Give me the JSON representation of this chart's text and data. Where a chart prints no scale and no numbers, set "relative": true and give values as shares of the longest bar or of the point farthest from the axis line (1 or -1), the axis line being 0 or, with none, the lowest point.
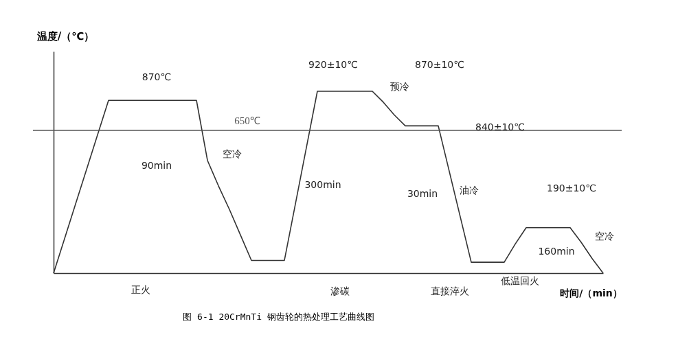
{
  "chart_data": {
    "type": "line",
    "relative": true,
    "title": "图 6-1 20CrMnTi 钢齿轮的热处理工艺曲线图",
    "xlabel": "时间/（min）",
    "ylabel": "温度/（℃）",
    "categories": [
      null,
      null,
      null,
      null,
      null,
      null,
      null,
      null,
      null,
      null,
      null,
      null,
      null,
      null,
      null,
      null,
      null,
      null,
      null,
      null,
      null,
      null,
      null,
      null,
      null,
      null,
      null,
      null,
      null,
      null,
      null,
      null,
      null,
      null,
      null,
      null,
      null,
      null,
      null,
      null,
      null,
      null,
      null,
      null,
      null,
      null,
      null,
      null,
      null,
      null,
      null
    ],
    "series": [
      {
        "color": "#333333",
        "values": [
          0,
          0.19,
          0.38,
          0.57,
          0.76,
          0.95,
          0.95,
          0.95,
          0.95,
          0.95,
          0.95,
          0.95,
          0.95,
          0.95,
          0.62,
          0.48,
          0.35,
          0.21,
          0.07,
          0.07,
          0.07,
          0.07,
          0.38,
          0.69,
          1,
          1,
          1,
          1,
          1,
          1,
          0.94,
          0.87,
          0.81,
          0.81,
          0.81,
          0.81,
          0.56,
          0.31,
          0.06,
          0.06,
          0.06,
          0.06,
          0.16,
          0.25,
          0.25,
          0.25,
          0.25,
          0.25,
          0.17,
          0.08,
          0
        ]
      }
    ],
    "ref_lines": [
      {
        "axis": "y",
        "value": 0.785,
        "label": "650℃",
        "color": "#555555"
      }
    ],
    "grid": false,
    "marker": "none",
    "line_style": "solid",
    "annotations": [
      "870℃",
      "920±10℃",
      "870±10℃",
      "预冷",
      "840±10℃",
      "空冷",
      "90min",
      "300min",
      "30min",
      "油冷",
      "190±10℃",
      "空冷",
      "160min",
      "正火",
      "渗碳",
      "直接淬火",
      "低温回火"
    ]
  }
}
